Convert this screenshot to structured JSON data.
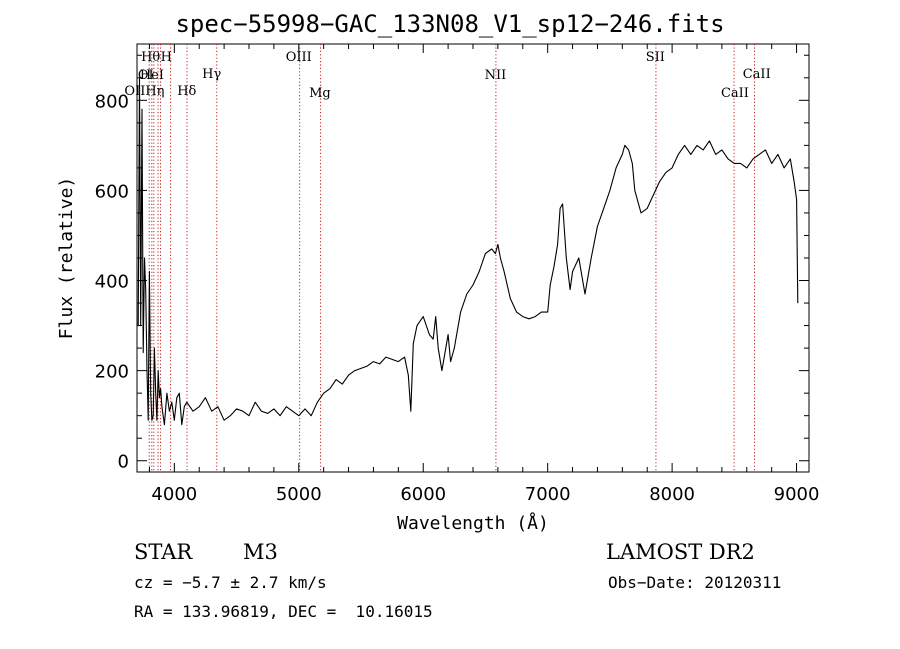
{
  "chart_data": {
    "type": "line",
    "title": "spec−55998−GAC_133N08_V1_sp12−246.fits",
    "xlabel": "Wavelength (Å)",
    "ylabel": "Flux (relative)",
    "xlim": [
      3700,
      9100
    ],
    "ylim": [
      -25,
      925
    ],
    "x_ticks": [
      4000,
      5000,
      6000,
      7000,
      8000,
      9000
    ],
    "y_ticks": [
      0,
      200,
      400,
      600,
      800
    ],
    "x_tick_labels": [
      "4000",
      "5000",
      "6000",
      "7000",
      "8000",
      "9000"
    ],
    "y_tick_labels": [
      "0",
      "200",
      "400",
      "600",
      "800"
    ],
    "grid": false,
    "series": [
      {
        "x": [
          3710,
          3720,
          3730,
          3740,
          3750,
          3760,
          3770,
          3780,
          3790,
          3800,
          3810,
          3820,
          3830,
          3840,
          3850,
          3860,
          3870,
          3880,
          3890,
          3900,
          3920,
          3940,
          3960,
          3980,
          4000,
          4020,
          4040,
          4060,
          4080,
          4100,
          4150,
          4200,
          4250,
          4300,
          4350,
          4400,
          4450,
          4500,
          4550,
          4600,
          4650,
          4700,
          4750,
          4800,
          4850,
          4900,
          4950,
          5000,
          5050,
          5100,
          5150,
          5200,
          5250,
          5300,
          5350,
          5400,
          5450,
          5500,
          5550,
          5600,
          5650,
          5700,
          5750,
          5800,
          5850,
          5880,
          5900,
          5920,
          5950,
          6000,
          6050,
          6080,
          6100,
          6120,
          6150,
          6200,
          6220,
          6250,
          6300,
          6350,
          6400,
          6450,
          6500,
          6550,
          6580,
          6600,
          6620,
          6650,
          6700,
          6750,
          6800,
          6850,
          6900,
          6950,
          7000,
          7020,
          7050,
          7080,
          7100,
          7120,
          7150,
          7180,
          7200,
          7250,
          7300,
          7350,
          7400,
          7450,
          7500,
          7550,
          7600,
          7620,
          7650,
          7680,
          7700,
          7750,
          7800,
          7850,
          7900,
          7950,
          8000,
          8050,
          8100,
          8150,
          8200,
          8250,
          8300,
          8350,
          8400,
          8450,
          8500,
          8550,
          8600,
          8650,
          8700,
          8750,
          8800,
          8850,
          8900,
          8950,
          8980,
          9000,
          9010
        ],
        "y": [
          300,
          850,
          300,
          780,
          240,
          450,
          380,
          200,
          90,
          420,
          150,
          90,
          100,
          250,
          150,
          90,
          200,
          140,
          160,
          120,
          80,
          150,
          110,
          130,
          90,
          140,
          150,
          80,
          120,
          130,
          110,
          120,
          140,
          110,
          120,
          90,
          100,
          115,
          110,
          100,
          130,
          110,
          105,
          115,
          100,
          120,
          110,
          100,
          115,
          100,
          130,
          150,
          160,
          180,
          170,
          190,
          200,
          205,
          210,
          220,
          215,
          230,
          225,
          220,
          230,
          190,
          110,
          260,
          300,
          320,
          280,
          270,
          320,
          250,
          200,
          280,
          220,
          250,
          330,
          370,
          390,
          420,
          460,
          470,
          460,
          480,
          450,
          420,
          360,
          330,
          320,
          315,
          320,
          330,
          330,
          390,
          430,
          480,
          560,
          570,
          450,
          380,
          420,
          450,
          370,
          450,
          520,
          560,
          600,
          650,
          680,
          700,
          690,
          660,
          600,
          550,
          560,
          590,
          620,
          640,
          650,
          680,
          700,
          680,
          700,
          690,
          710,
          680,
          690,
          670,
          660,
          660,
          650,
          670,
          680,
          690,
          660,
          680,
          650,
          670,
          620,
          580,
          350
        ],
        "color": "#000000"
      }
    ],
    "line_annotations": [
      {
        "wavelength": 3798,
        "label": "O I"
      },
      {
        "wavelength": 3819,
        "label": "He I"
      },
      {
        "wavelength": 3835,
        "label": "Hθ"
      },
      {
        "wavelength": 3869,
        "label": "O II"
      },
      {
        "wavelength": 3889,
        "label": "Hη"
      },
      {
        "wavelength": 3970,
        "label": "H"
      },
      {
        "wavelength": 4102,
        "label": "Hδ"
      },
      {
        "wavelength": 4341,
        "label": "Hγ"
      },
      {
        "wavelength": 5007,
        "label": "O III"
      },
      {
        "wavelength": 5175,
        "label": "Mg"
      },
      {
        "wavelength": 6584,
        "label": "N II"
      },
      {
        "wavelength": 7870,
        "label": "S II"
      },
      {
        "wavelength": 8498,
        "label": "Ca II"
      },
      {
        "wavelength": 8662,
        "label": "Ca II"
      }
    ],
    "line_label_text": {
      "h_theta": "Hθ",
      "h": "H",
      "o_i": "OI",
      "he_i": "HeI",
      "o_ii_h_eta": "OIIHη",
      "h_delta": "Hδ",
      "h_gamma": "Hγ",
      "o_iii": "OIII",
      "mg": "Mg",
      "n_ii": "NII",
      "s_ii": "SII",
      "ca_ii_a": "CaII",
      "ca_ii_b": "CaII"
    }
  },
  "info": {
    "object_class": "STAR",
    "subclass": "M3",
    "survey": "LAMOST DR2",
    "redshift": "cz = −5.7 ± 2.7 km/s",
    "obs_date": "Obs−Date: 20120311",
    "coords": "RA = 133.96819, DEC =  10.16015"
  }
}
